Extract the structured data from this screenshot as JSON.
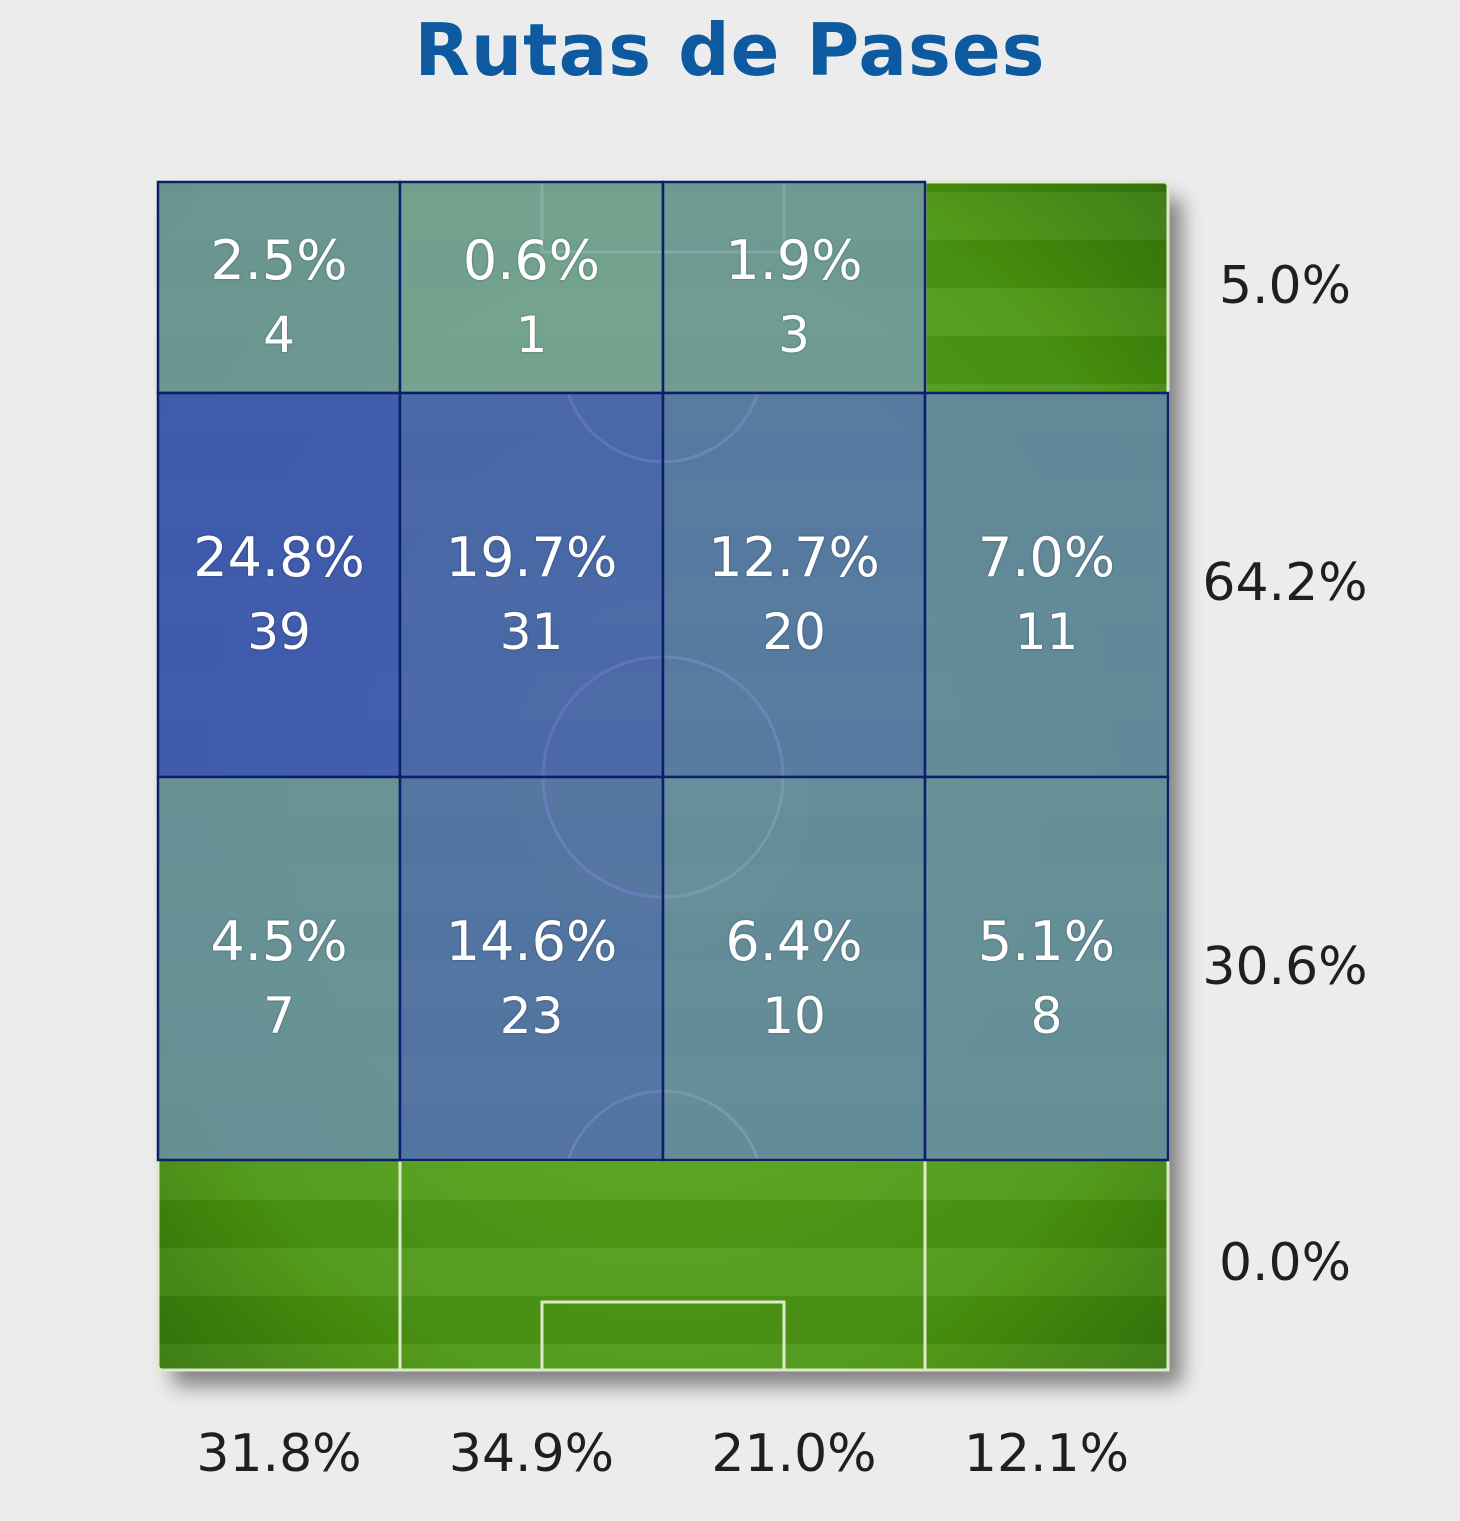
{
  "title": "Rutas de Pases",
  "colors": {
    "title": "#0d5aa0",
    "grass": "#4f9a14",
    "high": "#3f51c2",
    "low": "#7aa2a0",
    "grid_line": "#0d1f6a"
  },
  "chart_data": {
    "type": "heatmap",
    "title": "Rutas de Pases",
    "rows": [
      {
        "total": "5.0%",
        "cells": [
          {
            "pct": "2.5%",
            "count": "4",
            "value": 2.5
          },
          {
            "pct": "0.6%",
            "count": "1",
            "value": 0.6
          },
          {
            "pct": "1.9%",
            "count": "3",
            "value": 1.9
          },
          {
            "pct": "",
            "count": "",
            "value": 0
          }
        ]
      },
      {
        "total": "64.2%",
        "cells": [
          {
            "pct": "24.8%",
            "count": "39",
            "value": 24.8
          },
          {
            "pct": "19.7%",
            "count": "31",
            "value": 19.7
          },
          {
            "pct": "12.7%",
            "count": "20",
            "value": 12.7
          },
          {
            "pct": "7.0%",
            "count": "11",
            "value": 7.0
          }
        ]
      },
      {
        "total": "30.6%",
        "cells": [
          {
            "pct": "4.5%",
            "count": "7",
            "value": 4.5
          },
          {
            "pct": "14.6%",
            "count": "23",
            "value": 14.6
          },
          {
            "pct": "6.4%",
            "count": "10",
            "value": 6.4
          },
          {
            "pct": "5.1%",
            "count": "8",
            "value": 5.1
          }
        ]
      },
      {
        "total": "0.0%",
        "cells": [
          {
            "pct": "",
            "count": "",
            "value": 0
          },
          {
            "pct": "",
            "count": "",
            "value": 0
          },
          {
            "pct": "",
            "count": "",
            "value": 0
          },
          {
            "pct": "",
            "count": "",
            "value": 0
          }
        ]
      }
    ],
    "column_totals": [
      "31.8%",
      "34.9%",
      "21.0%",
      "12.1%"
    ]
  }
}
